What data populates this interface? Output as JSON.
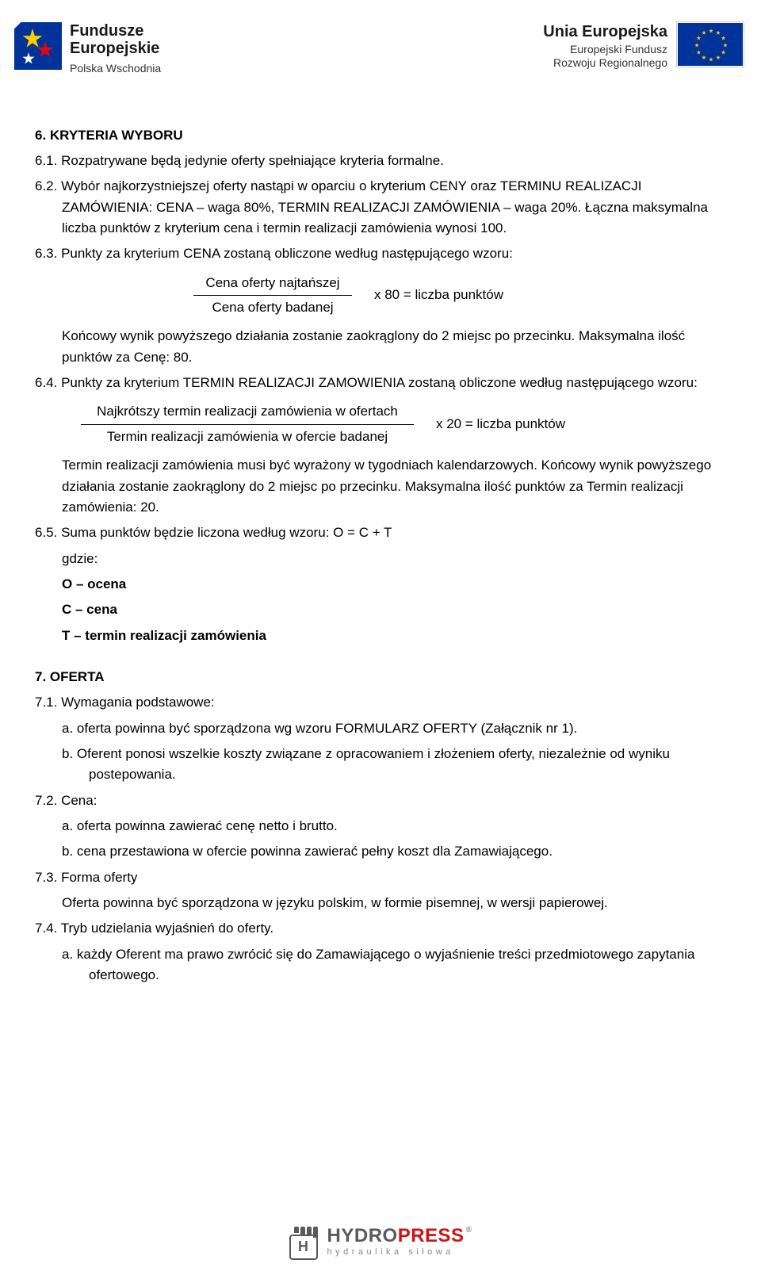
{
  "header": {
    "fe_line1": "Fundusze",
    "fe_line2": "Europejskie",
    "fe_line3": "Polska Wschodnia",
    "ue_line1": "Unia Europejska",
    "ue_line2": "Europejski Fundusz",
    "ue_line3": "Rozwoju Regionalnego"
  },
  "s6": {
    "title": "6. KRYTERIA WYBORU",
    "p6_1": "6.1. Rozpatrywane będą jedynie oferty spełniające kryteria formalne.",
    "p6_2": "6.2. Wybór najkorzystniejszej oferty nastąpi w oparciu o kryterium CENY oraz TERMINU REALIZACJI ZAMÓWIENIA: CENA – waga 80%, TERMIN REALIZACJI ZAMÓWIENIA  – waga 20%. Łączna maksymalna liczba punktów z kryterium cena i termin realizacji zamówienia wynosi 100.",
    "p6_3": "6.3. Punkty za kryterium CENA zostaną obliczone według następującego wzoru:",
    "f1_num": "Cena oferty najtańszej",
    "f1_den": "Cena oferty badanej",
    "f1_eq": "x 80 = liczba punktów",
    "p6_3b": "Końcowy wynik powyższego działania zostanie zaokrąglony do 2 miejsc po przecinku. Maksymalna ilość punktów za Cenę: 80.",
    "p6_4": "6.4. Punkty za kryterium TERMIN REALIZACJI ZAMOWIENIA zostaną obliczone według następującego wzoru:",
    "f2_num": "Najkrótszy termin realizacji zamówienia w ofertach",
    "f2_den": "Termin realizacji zamówienia w ofercie badanej",
    "f2_eq": "x 20 = liczba punktów",
    "p6_4b": "Termin realizacji zamówienia musi być wyrażony w tygodniach kalendarzowych. Końcowy wynik powyższego działania zostanie zaokrąglony do 2 miejsc po przecinku. Maksymalna ilość punktów za Termin realizacji zamówienia: 20.",
    "p6_5": "6.5. Suma punktów będzie liczona według wzoru: O = C + T",
    "p6_5_where": "gdzie:",
    "p6_5_o": "O – ocena",
    "p6_5_c": "C – cena",
    "p6_5_t": "T – termin realizacji zamówienia"
  },
  "s7": {
    "title": "7. OFERTA",
    "p7_1": "7.1. Wymagania podstawowe:",
    "p7_1a": "a. oferta powinna być sporządzona wg wzoru FORMULARZ OFERTY (Załącznik nr 1).",
    "p7_1b": "b. Oferent ponosi wszelkie koszty związane z opracowaniem i złożeniem oferty, niezależnie od wyniku postepowania.",
    "p7_2": "7.2. Cena:",
    "p7_2a": "a. oferta powinna zawierać cenę netto i brutto.",
    "p7_2b": "b. cena przestawiona w ofercie powinna zawierać pełny koszt dla Zamawiającego.",
    "p7_3": "7.3. Forma oferty",
    "p7_3a": "Oferta powinna być sporządzona w języku polskim, w formie pisemnej, w wersji papierowej.",
    "p7_4": "7.4. Tryb udzielania wyjaśnień do oferty.",
    "p7_4a": "a. każdy Oferent ma prawo zwrócić się do Zamawiającego o wyjaśnienie treści przedmiotowego zapytania ofertowego."
  },
  "footer": {
    "mark_letter": "H",
    "brand_a": "HYDRO",
    "brand_b": "PRESS",
    "reg": "®",
    "tagline": "hydraulika siłowa"
  },
  "colors": {
    "eu_blue": "#003399",
    "eu_yellow": "#ffcc00",
    "fe_red": "#e30613",
    "text": "#000000",
    "hp_grey": "#5a5a5a",
    "hp_red": "#d21212"
  }
}
